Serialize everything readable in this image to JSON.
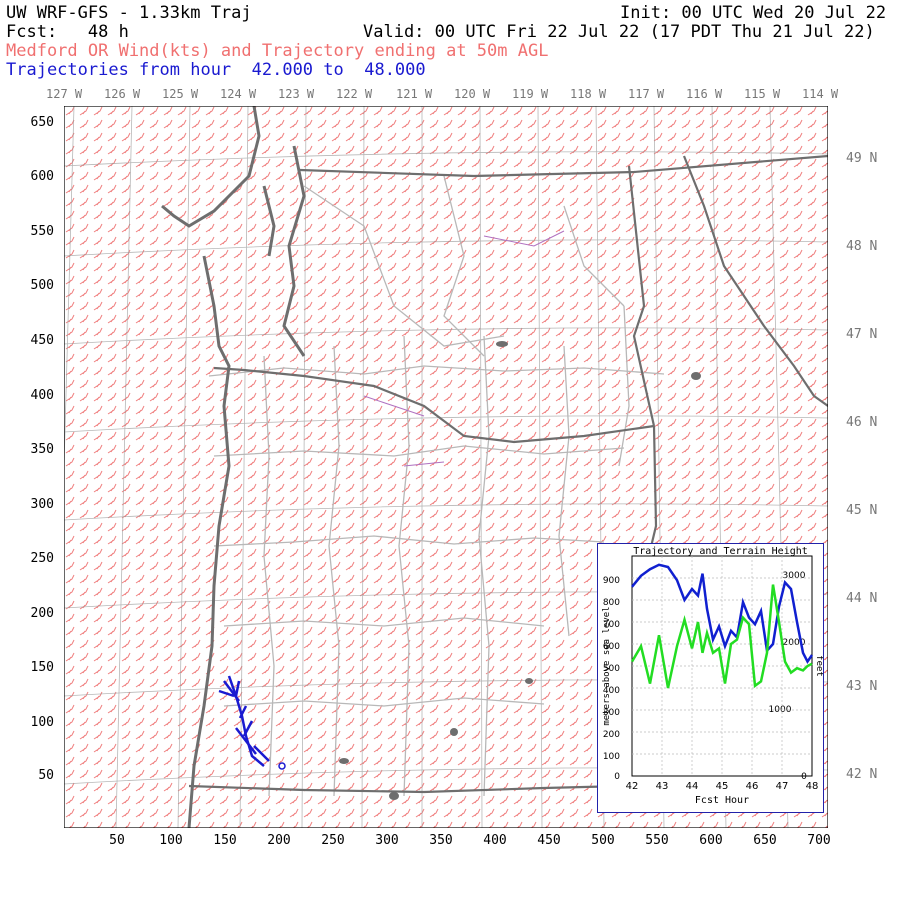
{
  "header": {
    "title": "UW WRF-GFS - 1.33km Traj",
    "init": "Init: 00 UTC Wed 20 Jul 22",
    "fcst": "Fcst:   48 h",
    "valid": "Valid: 00 UTC Fri 22 Jul 22 (17 PDT Thu 21 Jul 22)",
    "subtitle": "Medford OR Wind(kts) and Trajectory ending at 50m AGL",
    "trajectories": "Trajectories from hour  42.000 to  48.000"
  },
  "map": {
    "longitude_labels": [
      "127 W",
      "126 W",
      "125 W",
      "124 W",
      "123 W",
      "122 W",
      "121 W",
      "120 W",
      "119 W",
      "118 W",
      "117 W",
      "116 W",
      "115 W",
      "114 W"
    ],
    "latitude_labels": [
      "49 N",
      "48 N",
      "47 N",
      "46 N",
      "45 N",
      "44 N",
      "43 N",
      "42 N"
    ],
    "y_axis_ticks": [
      "650",
      "600",
      "550",
      "500",
      "450",
      "400",
      "350",
      "300",
      "250",
      "200",
      "150",
      "100",
      "50"
    ],
    "x_axis_ticks": [
      "50",
      "100",
      "150",
      "200",
      "250",
      "300",
      "350",
      "400",
      "450",
      "500",
      "550",
      "600",
      "650",
      "700"
    ],
    "wind_color": "#f08080",
    "coast_color": "#6e6e6e",
    "trajectory_color": "#1a1ad0"
  },
  "inset": {
    "title": "Trajectory and Terrain Height",
    "left_axis_label": "meters above sea level",
    "right_axis_label": "feet",
    "x_axis_label": "Fcst Hour",
    "left_ticks": [
      "900",
      "800",
      "700",
      "600",
      "500",
      "400",
      "300",
      "200",
      "100",
      "0"
    ],
    "right_ticks": [
      "3000",
      "2000",
      "1000",
      "0"
    ],
    "x_ticks": [
      "42",
      "43",
      "44",
      "45",
      "46",
      "47",
      "48"
    ]
  },
  "chart_data": {
    "type": "line",
    "title": "Trajectory and Terrain Height",
    "xlabel": "Fcst Hour",
    "ylabel": "meters above sea level",
    "xlim": [
      42,
      48
    ],
    "ylim": [
      0,
      1000
    ],
    "series": [
      {
        "name": "",
        "color": "#1020d0",
        "x": [
          42.0,
          42.3,
          42.6,
          42.9,
          43.2,
          43.5,
          43.75,
          44.0,
          44.2,
          44.35,
          44.5,
          44.7,
          44.9,
          45.1,
          45.3,
          45.5,
          45.7,
          45.9,
          46.1,
          46.3,
          46.5,
          46.7,
          46.9,
          47.1,
          47.3,
          47.5,
          47.7,
          47.85,
          48.0
        ],
        "y": [
          860,
          910,
          940,
          960,
          950,
          890,
          800,
          850,
          820,
          920,
          760,
          620,
          680,
          590,
          660,
          630,
          790,
          720,
          690,
          750,
          570,
          600,
          770,
          880,
          850,
          700,
          560,
          520,
          550
        ]
      },
      {
        "name": "",
        "color": "#22dd22",
        "x": [
          42.0,
          42.3,
          42.6,
          42.9,
          43.2,
          43.5,
          43.75,
          44.0,
          44.2,
          44.35,
          44.5,
          44.7,
          44.9,
          45.1,
          45.3,
          45.5,
          45.7,
          45.9,
          46.1,
          46.3,
          46.5,
          46.7,
          46.9,
          47.1,
          47.3,
          47.5,
          47.7,
          47.85,
          48.0
        ],
        "y": [
          520,
          590,
          420,
          640,
          400,
          590,
          710,
          580,
          700,
          560,
          650,
          560,
          580,
          420,
          600,
          620,
          720,
          690,
          410,
          430,
          560,
          870,
          700,
          520,
          470,
          490,
          480,
          500,
          510
        ]
      }
    ]
  }
}
